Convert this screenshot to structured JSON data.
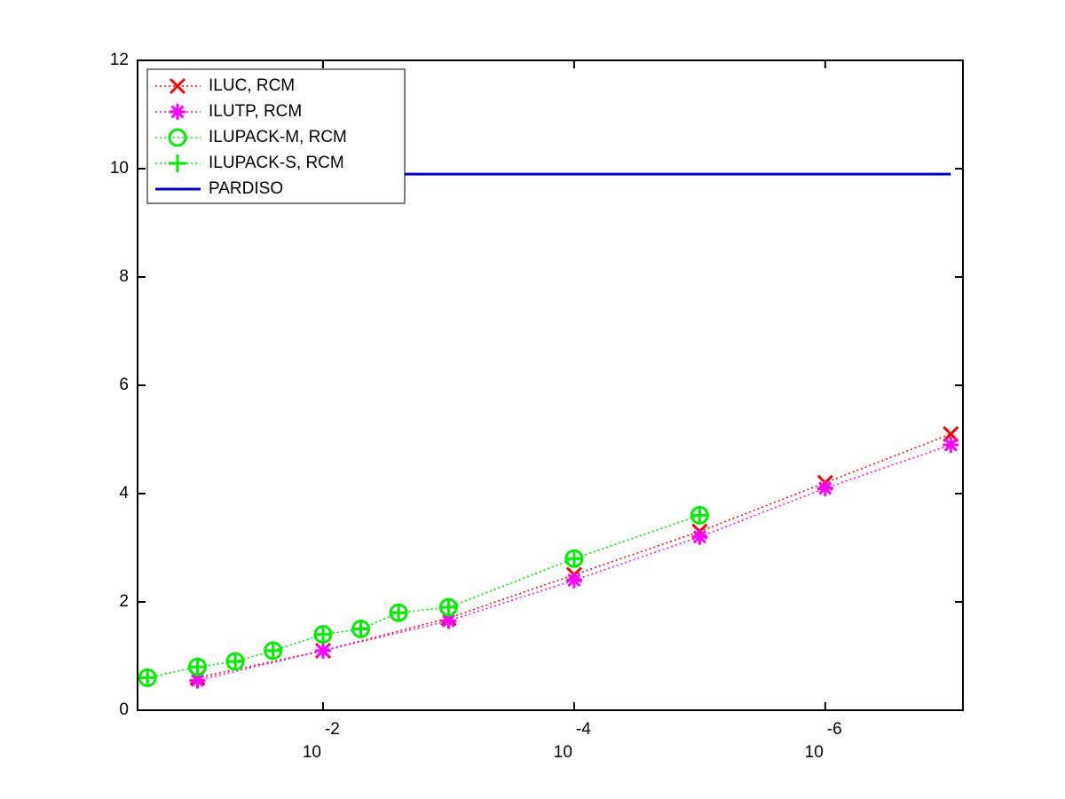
{
  "chart_data": {
    "type": "line",
    "xscale": "log",
    "xlim": [
      0.3,
      8e-08
    ],
    "xreversed": true,
    "xticks": [
      {
        "value": 0.01,
        "label": "10",
        "exponent": "-2"
      },
      {
        "value": 0.0001,
        "label": "10",
        "exponent": "-4"
      },
      {
        "value": 1e-06,
        "label": "10",
        "exponent": "-6"
      }
    ],
    "ylim": [
      0,
      12
    ],
    "yticks": [
      0,
      2,
      4,
      6,
      8,
      10,
      12
    ],
    "grid": false,
    "legend": "upper left",
    "series": [
      {
        "name": "ILUC, RCM",
        "color": "#ff0000",
        "marker": "x",
        "linestyle": "dotted",
        "x": [
          0.1,
          0.01,
          0.001,
          0.0001,
          1e-05,
          1e-06,
          1e-07
        ],
        "values": [
          0.6,
          1.1,
          1.7,
          2.5,
          3.3,
          4.2,
          5.1
        ]
      },
      {
        "name": "ILUTP, RCM",
        "color": "#ff00ff",
        "marker": "star",
        "linestyle": "dotted",
        "x": [
          0.1,
          0.01,
          0.001,
          0.0001,
          1e-05,
          1e-06,
          1e-07
        ],
        "values": [
          0.55,
          1.1,
          1.65,
          2.4,
          3.2,
          4.1,
          4.9
        ]
      },
      {
        "name": "ILUPACK-M, RCM",
        "color": "#00ee00",
        "marker": "circle",
        "linestyle": "dotted",
        "x": [
          0.25,
          0.1,
          0.05,
          0.025,
          0.01,
          0.005,
          0.0025,
          0.001,
          0.0001,
          1e-05
        ],
        "values": [
          0.6,
          0.8,
          0.9,
          1.1,
          1.4,
          1.5,
          1.8,
          1.9,
          2.8,
          3.6
        ]
      },
      {
        "name": "ILUPACK-S, RCM",
        "color": "#00ee00",
        "marker": "plus",
        "linestyle": "dotted",
        "x": [
          0.25,
          0.1,
          0.05,
          0.025,
          0.01,
          0.005,
          0.0025,
          0.001,
          0.0001,
          1e-05
        ],
        "values": [
          0.6,
          0.8,
          0.9,
          1.1,
          1.4,
          1.5,
          1.8,
          1.9,
          2.8,
          3.6
        ]
      },
      {
        "name": "PARDISO",
        "color": "#0000dd",
        "marker": "none",
        "linestyle": "solid",
        "x": [
          0.25,
          1e-07
        ],
        "values": [
          9.9,
          9.9
        ]
      }
    ]
  }
}
